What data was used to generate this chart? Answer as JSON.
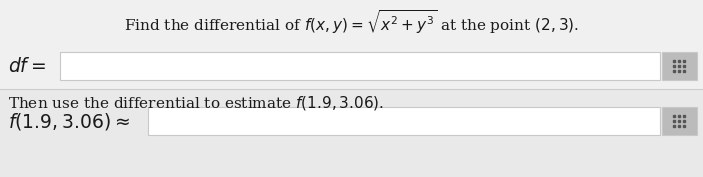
{
  "bg_color": "#e9e9e9",
  "white": "#ffffff",
  "box_edge_color": "#c8c8c8",
  "grid_icon_color": "#bbbbbb",
  "grid_dot_color": "#555555",
  "text_color": "#1a1a1a",
  "title_text": "Find the differential of $f(x, y) = \\sqrt{x^2 + y^3}$ at the point $(2, 3)$.",
  "label1": "$df=$",
  "label2": "$f(1.9, 3.06) \\approx$",
  "then_text": "Then use the differential to estimate $f(1.9, 3.06)$.",
  "title_fontsize": 11.0,
  "label_fontsize": 13.5,
  "body_fontsize": 11.0,
  "figwidth": 7.03,
  "figheight": 1.77,
  "dpi": 100
}
